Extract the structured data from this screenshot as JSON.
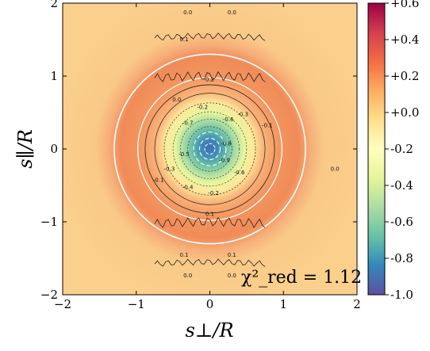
{
  "chart_data": {
    "type": "heatmap",
    "title": "",
    "xlabel": "s⊥/R",
    "ylabel": "s∥/R",
    "xlim": [
      -2,
      2
    ],
    "ylim": [
      -2,
      2
    ],
    "x_ticks": [
      {
        "value": -2,
        "label": "−2"
      },
      {
        "value": -1,
        "label": "−1"
      },
      {
        "value": 0,
        "label": "0"
      },
      {
        "value": 1,
        "label": "1"
      },
      {
        "value": 2,
        "label": "2"
      }
    ],
    "y_ticks": [
      {
        "value": -2,
        "label": "−2"
      },
      {
        "value": -1,
        "label": "−1"
      },
      {
        "value": 0,
        "label": "0"
      },
      {
        "value": 1,
        "label": "1"
      },
      {
        "value": 2,
        "label": "2"
      }
    ],
    "colorbar": {
      "colormap": "Spectral_r",
      "range": [
        -1.0,
        0.6
      ],
      "ticks": [
        {
          "value": 0.6,
          "label": "+0.6"
        },
        {
          "value": 0.4,
          "label": "+0.4"
        },
        {
          "value": 0.2,
          "label": "+0.2"
        },
        {
          "value": 0.0,
          "label": "+0.0"
        },
        {
          "value": -0.2,
          "label": "-0.2"
        },
        {
          "value": -0.4,
          "label": "-0.4"
        },
        {
          "value": -0.6,
          "label": "-0.6"
        },
        {
          "value": -0.8,
          "label": "-0.8"
        },
        {
          "value": -1.0,
          "label": "-1.0"
        }
      ]
    },
    "contour_labels": [
      {
        "x": -0.3,
        "y": 1.85,
        "text": "0.0"
      },
      {
        "x": 0.3,
        "y": 1.85,
        "text": "0.0"
      },
      {
        "x": -0.35,
        "y": 1.48,
        "text": "0.1"
      },
      {
        "x": 0.0,
        "y": 0.93,
        "text": "0.2"
      },
      {
        "x": -0.45,
        "y": 0.65,
        "text": "0.0"
      },
      {
        "x": -0.1,
        "y": 0.55,
        "text": "-0.2"
      },
      {
        "x": 0.45,
        "y": 0.45,
        "text": "-0.3"
      },
      {
        "x": 0.78,
        "y": 0.3,
        "text": "-0.1"
      },
      {
        "x": -0.3,
        "y": 0.33,
        "text": "-0.7"
      },
      {
        "x": 0.25,
        "y": 0.38,
        "text": "-0.6"
      },
      {
        "x": 0.22,
        "y": 0.05,
        "text": "-0.8"
      },
      {
        "x": 0.2,
        "y": -0.18,
        "text": "-0.9"
      },
      {
        "x": -0.35,
        "y": -0.1,
        "text": "-0.5"
      },
      {
        "x": -0.55,
        "y": -0.3,
        "text": "-0.3"
      },
      {
        "x": -0.7,
        "y": -0.45,
        "text": "-0.1"
      },
      {
        "x": -0.3,
        "y": -0.55,
        "text": "-0.4"
      },
      {
        "x": 0.4,
        "y": -0.35,
        "text": "-0.6"
      },
      {
        "x": 0.05,
        "y": -0.63,
        "text": "-0.2"
      },
      {
        "x": 0.0,
        "y": -0.92,
        "text": "0.1"
      },
      {
        "x": -0.35,
        "y": -1.48,
        "text": "0.1"
      },
      {
        "x": 0.3,
        "y": -1.48,
        "text": "0.1"
      },
      {
        "x": -0.3,
        "y": -1.76,
        "text": "0.0"
      },
      {
        "x": 0.3,
        "y": -1.76,
        "text": "0.0"
      },
      {
        "x": 1.7,
        "y": -0.3,
        "text": "0.0"
      }
    ],
    "annotation": "χ²_red = 1.12",
    "grid": false
  }
}
